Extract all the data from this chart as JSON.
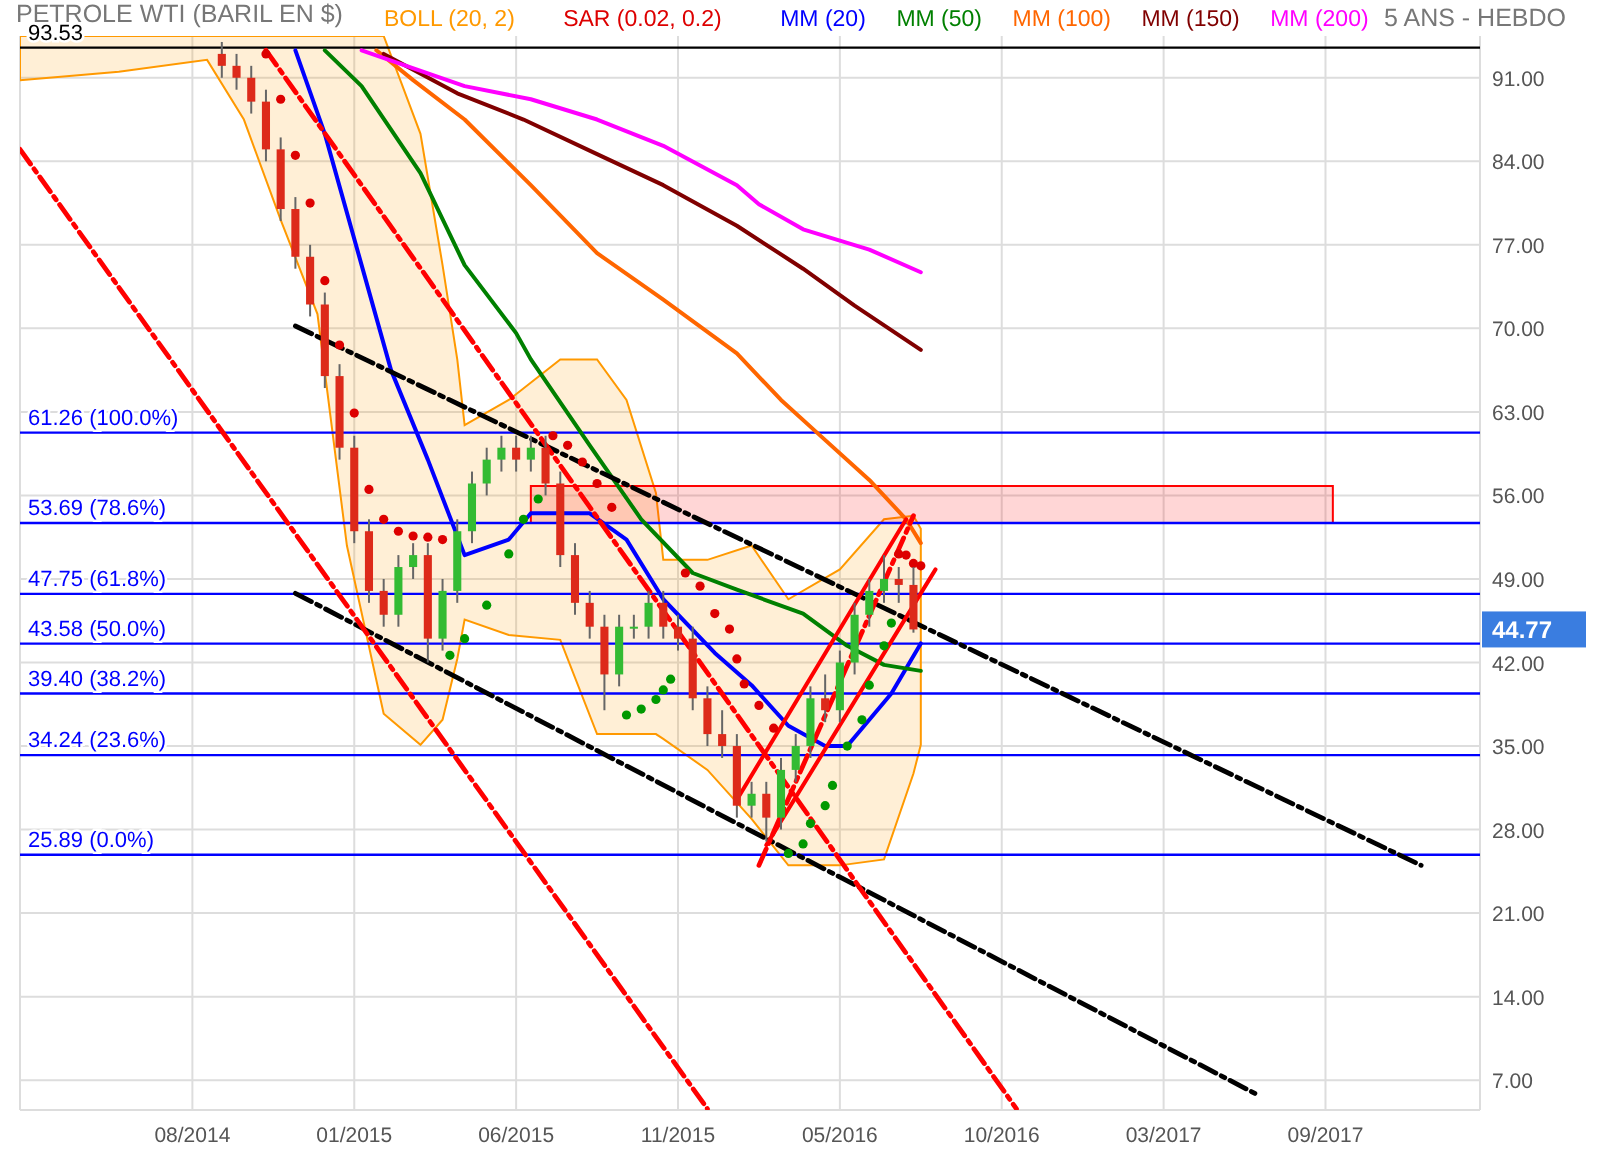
{
  "chart_data": {
    "type": "candlestick",
    "title": "PETROLE WTI (BARIL EN $)",
    "annotations": [
      "5 ANS - HEBDO",
      "44.77"
    ],
    "x": [
      "2014-09-22",
      "2014-10-06",
      "2014-10-20",
      "2014-11-03",
      "2014-11-17",
      "2014-12-01",
      "2014-12-15",
      "2014-12-29",
      "2015-01-12",
      "2015-01-26",
      "2015-02-09",
      "2015-02-23",
      "2015-03-09",
      "2015-03-23",
      "2015-04-06",
      "2015-04-20",
      "2015-05-04",
      "2015-05-18",
      "2015-06-01",
      "2015-06-15",
      "2015-06-29",
      "2015-07-13",
      "2015-07-27",
      "2015-08-10",
      "2015-08-24",
      "2015-09-07",
      "2015-09-21",
      "2015-10-05",
      "2015-10-19",
      "2015-11-02",
      "2015-11-16",
      "2015-11-30",
      "2015-12-14",
      "2015-12-28",
      "2016-01-11",
      "2016-01-25",
      "2016-02-08",
      "2016-02-22",
      "2016-03-07",
      "2016-03-21",
      "2016-04-04",
      "2016-04-18",
      "2016-05-02",
      "2016-05-16",
      "2016-05-30",
      "2016-06-13",
      "2016-06-27",
      "2016-07-11"
    ],
    "ohlc": [
      [
        93,
        94,
        91,
        92
      ],
      [
        92,
        93,
        90,
        91
      ],
      [
        91,
        92,
        88,
        89
      ],
      [
        89,
        90,
        84,
        85
      ],
      [
        85,
        86,
        79,
        80
      ],
      [
        80,
        81,
        75,
        76
      ],
      [
        76,
        77,
        71,
        72
      ],
      [
        72,
        73,
        65,
        66
      ],
      [
        66,
        67,
        59,
        60
      ],
      [
        60,
        61,
        52,
        53
      ],
      [
        53,
        54,
        47,
        48
      ],
      [
        48,
        49,
        45,
        46
      ],
      [
        46,
        51,
        45,
        50
      ],
      [
        50,
        52,
        49,
        51
      ],
      [
        51,
        52,
        42,
        44
      ],
      [
        44,
        49,
        43,
        48
      ],
      [
        48,
        54,
        47,
        53
      ],
      [
        53,
        58,
        52,
        57
      ],
      [
        57,
        60,
        56,
        59
      ],
      [
        59,
        61,
        58,
        60
      ],
      [
        60,
        61,
        58,
        59
      ],
      [
        59,
        61,
        58,
        60
      ],
      [
        60,
        61,
        56,
        57
      ],
      [
        57,
        58,
        50,
        51
      ],
      [
        51,
        52,
        46,
        47
      ],
      [
        47,
        48,
        44,
        45
      ],
      [
        45,
        46,
        38,
        41
      ],
      [
        41,
        46,
        40,
        45
      ],
      [
        45,
        46,
        44,
        45
      ],
      [
        45,
        48,
        44,
        47
      ],
      [
        47,
        48,
        44,
        45
      ],
      [
        45,
        46,
        43,
        44
      ],
      [
        44,
        45,
        38,
        39
      ],
      [
        39,
        40,
        35,
        36
      ],
      [
        36,
        38,
        34,
        35
      ],
      [
        35,
        36,
        29,
        30
      ],
      [
        30,
        32,
        29,
        31
      ],
      [
        31,
        32,
        27,
        29
      ],
      [
        29,
        34,
        28,
        33
      ],
      [
        33,
        36,
        32,
        35
      ],
      [
        35,
        40,
        34,
        39
      ],
      [
        39,
        41,
        37,
        38
      ],
      [
        38,
        43,
        37,
        42
      ],
      [
        42,
        47,
        41,
        46
      ],
      [
        46,
        49,
        45,
        48
      ],
      [
        48,
        51,
        47,
        49
      ],
      [
        49,
        50,
        47,
        48.5
      ],
      [
        48.5,
        50,
        44.5,
        44.77
      ]
    ],
    "series": [
      {
        "type": "area",
        "name": "BOLL (20, 2)",
        "color": "#ff9900",
        "x": [
          "2014-03-14",
          "2014-06-16",
          "2014-09-08",
          "2014-10-13",
          "2014-11-17",
          "2014-12-22",
          "2015-01-19",
          "2015-02-23",
          "2015-03-30",
          "2015-04-20",
          "2015-05-04",
          "2015-05-11",
          "2015-06-22",
          "2015-08-10",
          "2015-09-14",
          "2015-10-12",
          "2015-11-09",
          "2015-11-16",
          "2015-12-28",
          "2016-02-08",
          "2016-03-14",
          "2016-05-02",
          "2016-06-13",
          "2016-07-11",
          "2016-07-18"
        ],
        "values": [
          null,
          null,
          null,
          null,
          null,
          null,
          null,
          null,
          null,
          null,
          null,
          null,
          null,
          null,
          null,
          null,
          null,
          null,
          null,
          null,
          null,
          null,
          null,
          null,
          null
        ],
        "lower": [
          90.8,
          91.5,
          92.5,
          87.5,
          79.1,
          71.2,
          51.8,
          37.7,
          35.1,
          37.2,
          42.3,
          45.6,
          44.3,
          43.9,
          36,
          36,
          36,
          35.6,
          33,
          28.9,
          25,
          25,
          25.5,
          32.7,
          35.1
        ],
        "upper": [
          94.5,
          94.5,
          94.5,
          94.5,
          94.5,
          94.5,
          94.5,
          94.5,
          86.3,
          75.3,
          67.4,
          61.9,
          64,
          67.4,
          67.4,
          64,
          56.2,
          50.6,
          50.6,
          51.8,
          47.3,
          49.8,
          54,
          54.3,
          53.2
        ]
      },
      {
        "type": "area",
        "color": "#ff0000",
        "x": [
          "2015-07-13",
          "2017-08-14"
        ],
        "values": [
          null,
          null
        ],
        "lower": [
          53.69,
          53.69
        ],
        "upper": [
          56.8,
          56.8
        ]
      },
      {
        "type": "scatter",
        "name": "SAR (0.02, 0.2)",
        "color": "#dd0000",
        "x": [
          "2014-11-03",
          "2014-11-17",
          "2014-12-01",
          "2014-12-15",
          "2014-12-29",
          "2015-01-12",
          "2015-01-26",
          "2015-02-09",
          "2015-02-23",
          "2015-03-09",
          "2015-03-23",
          "2015-04-06",
          "2015-04-20",
          "2015-04-27",
          "2015-05-11",
          "2015-06-01",
          "2015-06-22",
          "2015-07-06",
          "2015-07-20",
          "2015-08-03",
          "2015-08-17",
          "2015-08-31",
          "2015-09-14",
          "2015-09-28",
          "2015-10-12",
          "2015-10-26",
          "2015-11-09",
          "2015-11-16",
          "2015-11-23",
          "2015-12-07",
          "2015-12-21",
          "2016-01-04",
          "2016-01-18",
          "2016-01-25",
          "2016-02-01",
          "2016-02-15",
          "2016-02-29",
          "2016-03-14",
          "2016-03-28",
          "2016-04-04",
          "2016-04-18",
          "2016-04-25",
          "2016-05-09",
          "2016-05-23",
          "2016-05-30",
          "2016-06-13",
          "2016-06-20",
          "2016-06-27",
          "2016-07-04",
          "2016-07-11",
          "2016-07-18"
        ],
        "values": [
          93,
          89.2,
          84.5,
          80.5,
          74,
          68.6,
          62.9,
          56.5,
          54,
          53,
          52.6,
          52.5,
          52.3,
          42.6,
          44,
          46.8,
          51.1,
          54,
          55.7,
          61,
          60.2,
          58.8,
          57,
          55,
          37.6,
          38.1,
          38.9,
          39.7,
          40.6,
          49.5,
          48.4,
          46.1,
          44.8,
          42.3,
          40.2,
          38.4,
          36.5,
          26,
          26.8,
          28.5,
          30,
          31.7,
          35,
          37.2,
          40.1,
          43.4,
          45.3,
          51.1,
          51,
          50.3,
          50.1
        ],
        "colors": [
          "#dd0000",
          "#dd0000",
          "#dd0000",
          "#dd0000",
          "#dd0000",
          "#dd0000",
          "#dd0000",
          "#dd0000",
          "#dd0000",
          "#dd0000",
          "#dd0000",
          "#dd0000",
          "#dd0000",
          "#009900",
          "#009900",
          "#009900",
          "#009900",
          "#009900",
          "#009900",
          "#dd0000",
          "#dd0000",
          "#dd0000",
          "#dd0000",
          "#dd0000",
          "#009900",
          "#009900",
          "#009900",
          "#009900",
          "#009900",
          "#dd0000",
          "#dd0000",
          "#dd0000",
          "#dd0000",
          "#dd0000",
          "#dd0000",
          "#dd0000",
          "#dd0000",
          "#009900",
          "#009900",
          "#009900",
          "#009900",
          "#009900",
          "#009900",
          "#009900",
          "#009900",
          "#009900",
          "#009900",
          "#dd0000",
          "#dd0000",
          "#dd0000",
          "#dd0000"
        ]
      },
      {
        "type": "line",
        "name": "MM (20)",
        "color": "#0000ff",
        "x": [
          "2014-12-01",
          "2014-12-29",
          "2015-02-02",
          "2015-03-02",
          "2015-04-06",
          "2015-05-11",
          "2015-06-22",
          "2015-07-13",
          "2015-09-07",
          "2015-10-12",
          "2015-11-16",
          "2016-01-04",
          "2016-02-08",
          "2016-03-14",
          "2016-04-18",
          "2016-05-09",
          "2016-06-20",
          "2016-07-18"
        ],
        "values": [
          93.3,
          86.3,
          75.3,
          66.5,
          59,
          51,
          52.3,
          54.5,
          54.5,
          52.3,
          47.3,
          42.8,
          40.1,
          36.7,
          35,
          35,
          39.4,
          43.6
        ]
      },
      {
        "type": "line",
        "name": "MM (50)",
        "color": "#008000",
        "x": [
          "2014-12-29",
          "2015-02-02",
          "2015-03-30",
          "2015-05-11",
          "2015-06-29",
          "2015-07-13",
          "2015-09-07",
          "2015-10-26",
          "2015-12-14",
          "2016-01-25",
          "2016-03-28",
          "2016-05-09",
          "2016-06-13",
          "2016-07-18"
        ],
        "values": [
          93.3,
          90.3,
          83,
          75.3,
          69.6,
          67.4,
          60.2,
          54,
          49.5,
          48.1,
          46.1,
          43.4,
          41.8,
          41.3
        ]
      },
      {
        "type": "line",
        "name": "MM (100)",
        "color": "#ff6600",
        "x": [
          "2015-02-16",
          "2015-03-23",
          "2015-05-11",
          "2015-07-13",
          "2015-09-14",
          "2015-11-16",
          "2016-01-25",
          "2016-03-07",
          "2016-04-11",
          "2016-05-30",
          "2016-07-04",
          "2016-07-18"
        ],
        "values": [
          93.3,
          90.8,
          87.5,
          82,
          76.3,
          72.4,
          67.9,
          64,
          61.2,
          57.3,
          54,
          52
        ]
      },
      {
        "type": "line",
        "name": "MM (150)",
        "color": "#800000",
        "x": [
          "2015-02-23",
          "2015-05-04",
          "2015-07-06",
          "2015-09-14",
          "2015-11-16",
          "2016-01-25",
          "2016-03-28",
          "2016-05-16",
          "2016-07-18"
        ],
        "values": [
          93,
          89.7,
          87.5,
          84.6,
          82,
          78.6,
          75,
          71.9,
          68.2
        ]
      },
      {
        "type": "line",
        "name": "MM (200)",
        "color": "#ff00ff",
        "x": [
          "2015-02-02",
          "2015-05-11",
          "2015-07-13",
          "2015-09-14",
          "2015-11-16",
          "2016-01-25",
          "2016-02-15",
          "2016-03-28",
          "2016-05-30",
          "2016-07-18"
        ],
        "values": [
          93.3,
          90.3,
          89.2,
          87.5,
          85.3,
          82,
          80.4,
          78.3,
          76.6,
          74.7
        ]
      },
      {
        "type": "line",
        "color": "#000000",
        "line_style": "dashed",
        "x": [
          "2014-12-01",
          "2017-11-06"
        ],
        "values": [
          70.2,
          25
        ]
      },
      {
        "type": "line",
        "color": "#000000",
        "line_style": "dashed",
        "x": [
          "2014-12-01",
          "2017-06-05"
        ],
        "values": [
          47.8,
          5.7
        ]
      },
      {
        "type": "line",
        "color": "#ff0000",
        "line_style": "dashed",
        "x": [
          "2014-03-14",
          "2015-12-28"
        ],
        "values": [
          85,
          4.6
        ]
      },
      {
        "type": "line",
        "color": "#ff0000",
        "line_style": "dashed",
        "x": [
          "2014-11-03",
          "2016-10-17"
        ],
        "values": [
          93.3,
          4.6
        ]
      },
      {
        "type": "line",
        "color": "#ff0000",
        "line_style": "solid",
        "x": [
          "2016-01-25",
          "2016-07-04"
        ],
        "values": [
          30.5,
          54
        ]
      },
      {
        "type": "line",
        "color": "#ff0000",
        "line_style": "solid",
        "x": [
          "2016-02-22",
          "2016-08-01"
        ],
        "values": [
          26.7,
          49.8
        ]
      },
      {
        "type": "line",
        "color": "#ff0000",
        "line_style": "dashed",
        "x": [
          "2016-02-15",
          "2016-07-11"
        ],
        "values": [
          25,
          54.3
        ]
      }
    ],
    "ref_lines": [
      {
        "axis": "y",
        "value": 93.53,
        "label": "93.53",
        "color": "#000000"
      },
      {
        "axis": "y",
        "value": 61.26,
        "label": "61.26  (100.0%)",
        "color": "#0000ff"
      },
      {
        "axis": "y",
        "value": 53.69,
        "label": "53.69  (78.6%)",
        "color": "#0000ff"
      },
      {
        "axis": "y",
        "value": 47.75,
        "label": "47.75  (61.8%)",
        "color": "#0000ff"
      },
      {
        "axis": "y",
        "value": 43.58,
        "label": "43.58  (50.0%)",
        "color": "#0000ff"
      },
      {
        "axis": "y",
        "value": 39.4,
        "label": "39.40  (38.2%)",
        "color": "#0000ff"
      },
      {
        "axis": "y",
        "value": 34.24,
        "label": "34.24  (23.6%)",
        "color": "#0000ff"
      },
      {
        "axis": "y",
        "value": 25.89,
        "label": "25.89  (0.0%)",
        "color": "#0000ff"
      }
    ],
    "xlim": [
      "2014-03-14",
      "2018-01-01"
    ],
    "xticks": [
      {
        "value": "2014-08-25",
        "label": "08/2014"
      },
      {
        "value": "2015-01-26",
        "label": "01/2015"
      },
      {
        "value": "2015-06-29",
        "label": "06/2015"
      },
      {
        "value": "2015-11-30",
        "label": "11/2015"
      },
      {
        "value": "2016-05-02",
        "label": "05/2016"
      },
      {
        "value": "2016-10-03",
        "label": "10/2016"
      },
      {
        "value": "2017-03-06",
        "label": "03/2017"
      },
      {
        "value": "2017-08-07",
        "label": "09/2017"
      }
    ],
    "ylim": [
      4.5,
      94.5
    ],
    "yticks": [
      {
        "value": 7,
        "label": "7.00"
      },
      {
        "value": 14,
        "label": "14.00"
      },
      {
        "value": 21,
        "label": "21.00"
      },
      {
        "value": 28,
        "label": "28.00"
      },
      {
        "value": 35,
        "label": "35.00"
      },
      {
        "value": 42,
        "label": "42.00"
      },
      {
        "value": 49,
        "label": "49.00"
      },
      {
        "value": 56,
        "label": "56.00"
      },
      {
        "value": 63,
        "label": "63.00"
      },
      {
        "value": 70,
        "label": "70.00"
      },
      {
        "value": 77,
        "label": "77.00"
      },
      {
        "value": 84,
        "label": "84.00"
      },
      {
        "value": 91,
        "label": "91.00"
      }
    ],
    "grid": true,
    "legend": "top left"
  }
}
